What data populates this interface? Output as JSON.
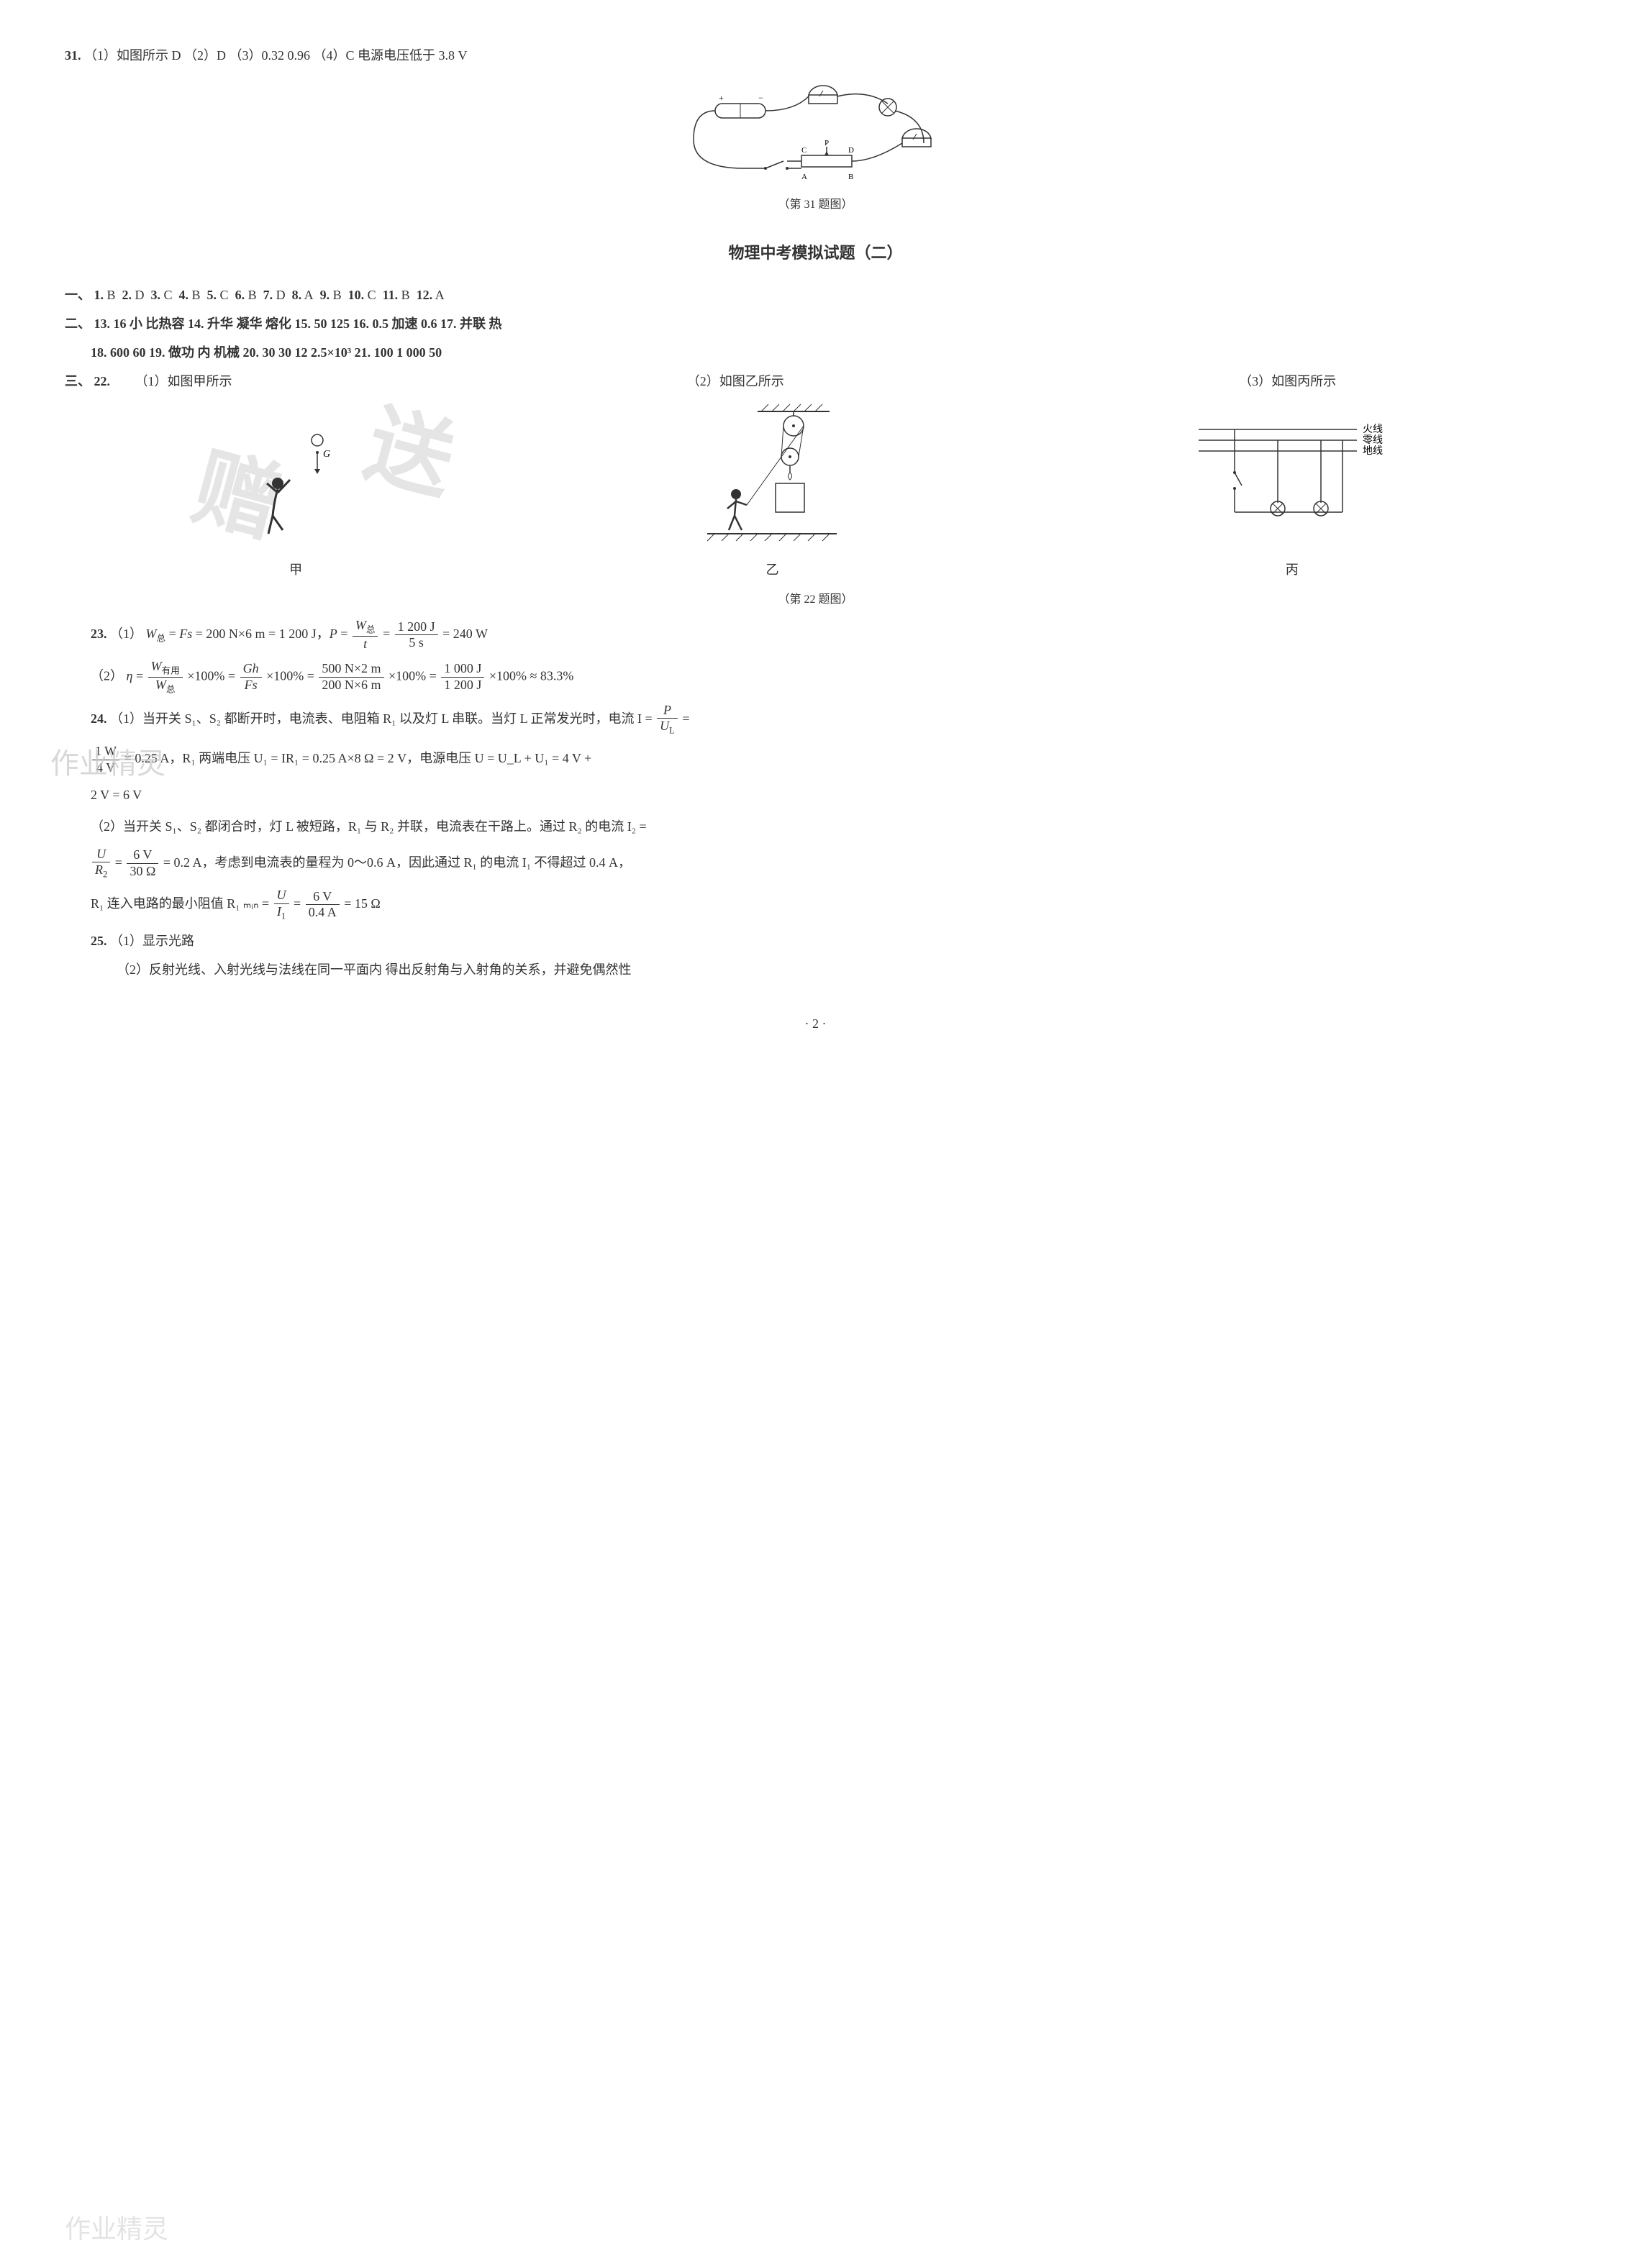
{
  "q31": {
    "num": "31.",
    "text": "（1）如图所示  D  （2）D  （3）0.32  0.96  （4）C  电源电压低于 3.8 V",
    "fig_caption": "（第 31 题图）",
    "labels": [
      "A",
      "B",
      "C",
      "D",
      "P"
    ]
  },
  "section_title": "物理中考模拟试题（二）",
  "sec1": {
    "label": "一、",
    "items": [
      {
        "n": "1.",
        "a": "B"
      },
      {
        "n": "2.",
        "a": "D"
      },
      {
        "n": "3.",
        "a": "C"
      },
      {
        "n": "4.",
        "a": "B"
      },
      {
        "n": "5.",
        "a": "C"
      },
      {
        "n": "6.",
        "a": "B"
      },
      {
        "n": "7.",
        "a": "D"
      },
      {
        "n": "8.",
        "a": "A"
      },
      {
        "n": "9.",
        "a": "B"
      },
      {
        "n": "10.",
        "a": "C"
      },
      {
        "n": "11.",
        "a": "B"
      },
      {
        "n": "12.",
        "a": "A"
      }
    ]
  },
  "sec2": {
    "label": "二、",
    "line1": "13. 16  小  比热容  14. 升华  凝华  熔化  15. 50  125  16. 0.5  加速  0.6  17. 并联  热",
    "line2": "18. 600  60  19. 做功  内  机械  20. 30  30  12  2.5×10³  21. 100  1 000  50"
  },
  "sec3": {
    "label": "三、",
    "q22": {
      "num": "22.",
      "parts": {
        "p1": "（1）如图甲所示",
        "p2": "（2）如图乙所示",
        "p3": "（3）如图丙所示"
      },
      "sub_labels": {
        "a": "甲",
        "b": "乙",
        "c": "丙"
      },
      "wire_labels": {
        "live": "火线",
        "neutral": "零线",
        "ground": "地线"
      },
      "fig_caption": "（第 22 题图）",
      "g_label": "G"
    }
  },
  "q23": {
    "num": "23.",
    "p1_prefix": "（1）",
    "p2_prefix": "（2）",
    "f1": {
      "lhs": "W",
      "sub": "总",
      "eq": "= Fs = 200 N×6 m = 1 200 J，",
      "P": "P =",
      "t": "t",
      "val": "= 240 W",
      "num": "1 200 J",
      "den": "5 s",
      "Wtotal": "W总"
    },
    "f2": {
      "eta": "η =",
      "num1": "W有用",
      "den1": "W总",
      "x": "×100% =",
      "num2": "Gh",
      "den2": "Fs",
      "num3": "500 N×2 m",
      "den3": "200 N×6 m",
      "num4": "1 000 J",
      "den4": "1 200 J",
      "end": "×100% ≈ 83.3%"
    }
  },
  "q24": {
    "num": "24.",
    "p1": "（1）当开关 S₁、S₂ 都断开时，电流表、电阻箱 R₁ 以及灯 L 串联。当灯 L 正常发光时，电流 I =",
    "f1": {
      "num": "P",
      "den": "U_L",
      "eq": "="
    },
    "p1b_frac": {
      "num": "1 W",
      "den": "4 V"
    },
    "p1b": "= 0.25 A，R₁ 两端电压 U₁ = IR₁ = 0.25 A×8 Ω = 2 V，电源电压 U = U_L + U₁ = 4 V +",
    "p1c": "2 V = 6 V",
    "p2": "（2）当开关 S₁、S₂ 都闭合时，灯 L 被短路，R₁ 与 R₂ 并联，电流表在干路上。通过 R₂ 的电流 I₂ =",
    "f2": {
      "num": "U",
      "den": "R₂",
      "eq2": "=",
      "num2": "6 V",
      "den2": "30 Ω",
      "rest": "= 0.2 A，考虑到电流表的量程为 0～0.6 A，因此通过 R₁ 的电流 I₁ 不得超过 0.4 A，"
    },
    "p2c_pre": "R₁ 连入电路的最小阻值 R₁ ₘᵢₙ =",
    "f3": {
      "num": "U",
      "den": "I₁",
      "eq": "=",
      "num2": "6 V",
      "den2": "0.4 A",
      "rest": "= 15 Ω"
    }
  },
  "q25": {
    "num": "25.",
    "p1": "（1）显示光路",
    "p2": "（2）反射光线、入射光线与法线在同一平面内  得出反射角与入射角的关系，并避免偶然性"
  },
  "page_num": "· 2 ·",
  "watermarks": {
    "big1": "赠",
    "big2": "送",
    "wm_small": "作业精灵"
  },
  "colors": {
    "text": "#333333",
    "bg": "#ffffff",
    "wm": "#cccccc",
    "wm2": "#d0d0d0"
  }
}
